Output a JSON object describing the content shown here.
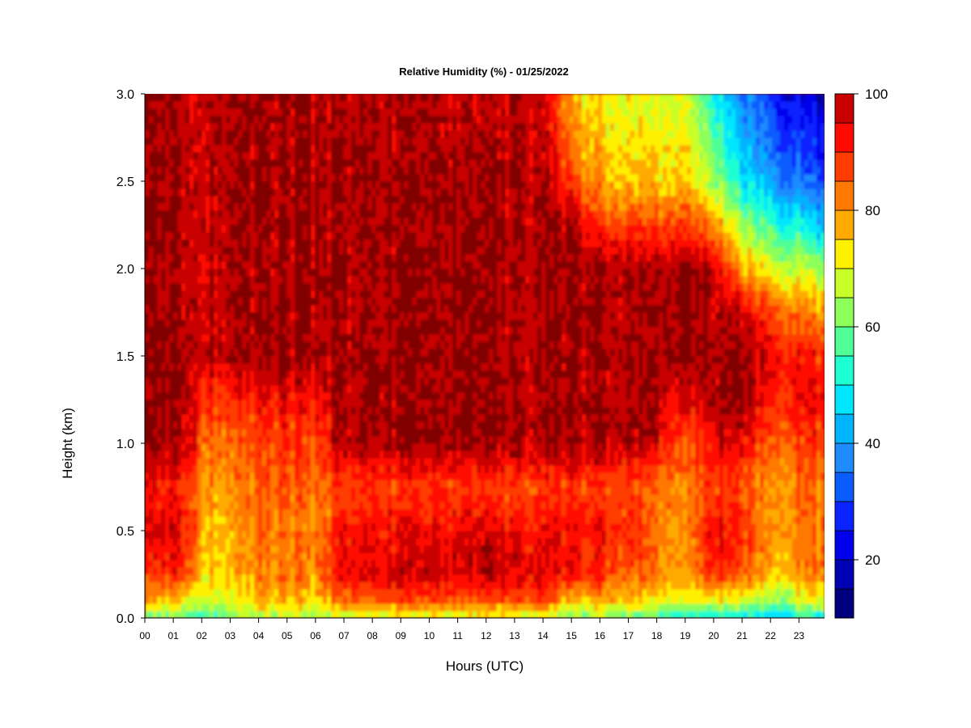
{
  "chart_data": {
    "type": "heatmap",
    "title": "Relative Humidity (%) - 01/25/2022",
    "xlabel": "Hours (UTC)",
    "ylabel": "Height (km)",
    "xlim": [
      0,
      23.9
    ],
    "ylim": [
      0,
      3.0
    ],
    "x_ticks": [
      "00",
      "01",
      "02",
      "03",
      "04",
      "05",
      "06",
      "07",
      "08",
      "09",
      "10",
      "11",
      "12",
      "13",
      "14",
      "15",
      "16",
      "17",
      "18",
      "19",
      "20",
      "21",
      "22",
      "23"
    ],
    "y_ticks": [
      "0.0",
      "0.5",
      "1.0",
      "1.5",
      "2.0",
      "2.5",
      "3.0"
    ],
    "colorbar": {
      "levels": [
        10,
        15,
        20,
        25,
        30,
        35,
        40,
        45,
        50,
        55,
        60,
        65,
        70,
        75,
        80,
        85,
        90,
        95,
        100
      ],
      "tick_labels": [
        "20",
        "40",
        "60",
        "80",
        "100"
      ],
      "colors": [
        "#00007F",
        "#0000B4",
        "#0000EB",
        "#0A24FF",
        "#0A5CFF",
        "#1E8CFF",
        "#00B4FF",
        "#00E6FF",
        "#1EFFD2",
        "#50FF96",
        "#8CFF5A",
        "#C8FF28",
        "#FFF000",
        "#FFAA00",
        "#FF7800",
        "#FF3C00",
        "#FF0A00",
        "#C80000",
        "#800000"
      ]
    },
    "units": "%",
    "profiles": [
      {
        "hour": 0.0,
        "rh": [
          58,
          76,
          86,
          95,
          91,
          100,
          100,
          100,
          100,
          100,
          100,
          100,
          100
        ]
      },
      {
        "hour": 1.0,
        "rh": [
          58,
          76,
          90,
          97,
          90,
          100,
          100,
          100,
          100,
          100,
          100,
          100,
          100
        ]
      },
      {
        "hour": 1.8,
        "rh": [
          56,
          70,
          84,
          92,
          89,
          97,
          100,
          100,
          100,
          100,
          100,
          100,
          100
        ]
      },
      {
        "hour": 2.0,
        "rh": [
          56,
          70,
          76,
          78,
          82,
          85,
          92,
          100,
          99,
          98,
          100,
          100,
          100
        ]
      },
      {
        "hour": 3.0,
        "rh": [
          60,
          71,
          76,
          78,
          81,
          84,
          90,
          100,
          100,
          100,
          100,
          100,
          100
        ]
      },
      {
        "hour": 4.0,
        "rh": [
          62,
          76,
          80,
          82,
          84,
          87,
          92,
          100,
          100,
          100,
          100,
          100,
          100
        ]
      },
      {
        "hour": 5.0,
        "rh": [
          64,
          77,
          82,
          82,
          85,
          88,
          94,
          100,
          100,
          100,
          100,
          100,
          100
        ]
      },
      {
        "hour": 6.0,
        "rh": [
          62,
          75,
          80,
          81,
          84,
          86,
          92,
          100,
          100,
          100,
          100,
          100,
          100
        ]
      },
      {
        "hour": 7.0,
        "rh": [
          66,
          84,
          95,
          93,
          87,
          100,
          100,
          100,
          100,
          100,
          100,
          100,
          100
        ]
      },
      {
        "hour": 8.0,
        "rh": [
          68,
          85,
          96,
          94,
          88,
          100,
          100,
          100,
          100,
          100,
          100,
          100,
          100
        ]
      },
      {
        "hour": 9.0,
        "rh": [
          68,
          86,
          97,
          93,
          88,
          100,
          100,
          100,
          100,
          100,
          100,
          100,
          98
        ]
      },
      {
        "hour": 10.0,
        "rh": [
          67,
          86,
          97,
          93,
          88,
          100,
          100,
          100,
          100,
          100,
          100,
          100,
          98
        ]
      },
      {
        "hour": 11.0,
        "rh": [
          66,
          85,
          96,
          94,
          88,
          100,
          100,
          100,
          100,
          100,
          100,
          100,
          96
        ]
      },
      {
        "hour": 12.0,
        "rh": [
          67,
          86,
          98,
          95,
          87,
          100,
          100,
          100,
          100,
          100,
          100,
          100,
          96
        ]
      },
      {
        "hour": 13.0,
        "rh": [
          68,
          87,
          97,
          94,
          88,
          100,
          100,
          100,
          100,
          100,
          100,
          100,
          100
        ]
      },
      {
        "hour": 14.0,
        "rh": [
          70,
          88,
          95,
          94,
          88,
          100,
          100,
          100,
          100,
          100,
          100,
          100,
          96
        ]
      },
      {
        "hour": 15.0,
        "rh": [
          58,
          74,
          92,
          92,
          88,
          100,
          100,
          100,
          100,
          100,
          100,
          86,
          76
        ]
      },
      {
        "hour": 16.0,
        "rh": [
          64,
          78,
          90,
          92,
          87,
          100,
          100,
          100,
          100,
          100,
          88,
          78,
          72
        ]
      },
      {
        "hour": 17.0,
        "rh": [
          60,
          76,
          86,
          91,
          87,
          100,
          100,
          100,
          100,
          100,
          88,
          76,
          70
        ]
      },
      {
        "hour": 18.0,
        "rh": [
          52,
          70,
          82,
          83,
          84,
          95,
          100,
          100,
          100,
          100,
          87,
          75,
          68
        ]
      },
      {
        "hour": 19.0,
        "rh": [
          50,
          68,
          76,
          78,
          80,
          84,
          93,
          100,
          100,
          100,
          88,
          74,
          68
        ]
      },
      {
        "hour": 20.0,
        "rh": [
          48,
          70,
          92,
          96,
          88,
          95,
          100,
          100,
          100,
          98,
          82,
          64,
          52
        ]
      },
      {
        "hour": 21.0,
        "rh": [
          46,
          68,
          85,
          90,
          86,
          96,
          100,
          100,
          96,
          78,
          62,
          48,
          36
        ]
      },
      {
        "hour": 22.0,
        "rh": [
          44,
          62,
          76,
          80,
          80,
          85,
          92,
          96,
          88,
          70,
          56,
          40,
          28
        ]
      },
      {
        "hour": 23.0,
        "rh": [
          48,
          68,
          80,
          82,
          83,
          87,
          93,
          92,
          82,
          68,
          50,
          34,
          22
        ]
      },
      {
        "hour": 23.9,
        "rh": [
          50,
          70,
          82,
          84,
          84,
          88,
          94,
          90,
          80,
          64,
          44,
          30,
          20
        ]
      }
    ],
    "profile_heights_km": [
      0.0,
      0.1,
      0.25,
      0.5,
      0.75,
      1.0,
      1.25,
      1.5,
      1.75,
      2.0,
      2.25,
      2.5,
      3.0
    ]
  }
}
